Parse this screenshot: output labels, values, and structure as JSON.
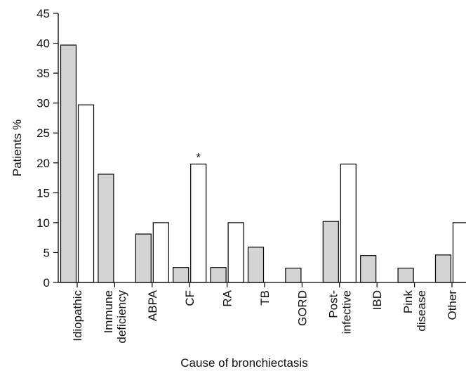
{
  "chart_data": {
    "type": "bar",
    "xlabel": "Cause of bronchiectasis",
    "ylabel": "Patients %",
    "ylim": [
      0,
      45
    ],
    "yticks": [
      0,
      5,
      10,
      15,
      20,
      25,
      30,
      35,
      40,
      45
    ],
    "grid": false,
    "categories": [
      [
        "Idiopathic"
      ],
      [
        "Immune",
        "deficiency"
      ],
      [
        "ABPA"
      ],
      [
        "CF"
      ],
      [
        "RA"
      ],
      [
        "TB"
      ],
      [
        "GORD"
      ],
      [
        "Post-",
        "infective"
      ],
      [
        "IBD"
      ],
      [
        "Pink",
        "disease"
      ],
      [
        "Other"
      ]
    ],
    "series": [
      {
        "color": "#d4d4d4",
        "values": [
          39.7,
          18.1,
          8.1,
          2.5,
          2.5,
          5.9,
          2.4,
          10.2,
          4.5,
          2.4,
          4.6
        ]
      },
      {
        "color": "#ffffff",
        "values": [
          29.7,
          0,
          10,
          19.8,
          10,
          0,
          0,
          19.8,
          0,
          0,
          10
        ]
      }
    ],
    "annotations": [
      {
        "category_index": 3,
        "series_index": 1,
        "text": "*"
      }
    ]
  }
}
